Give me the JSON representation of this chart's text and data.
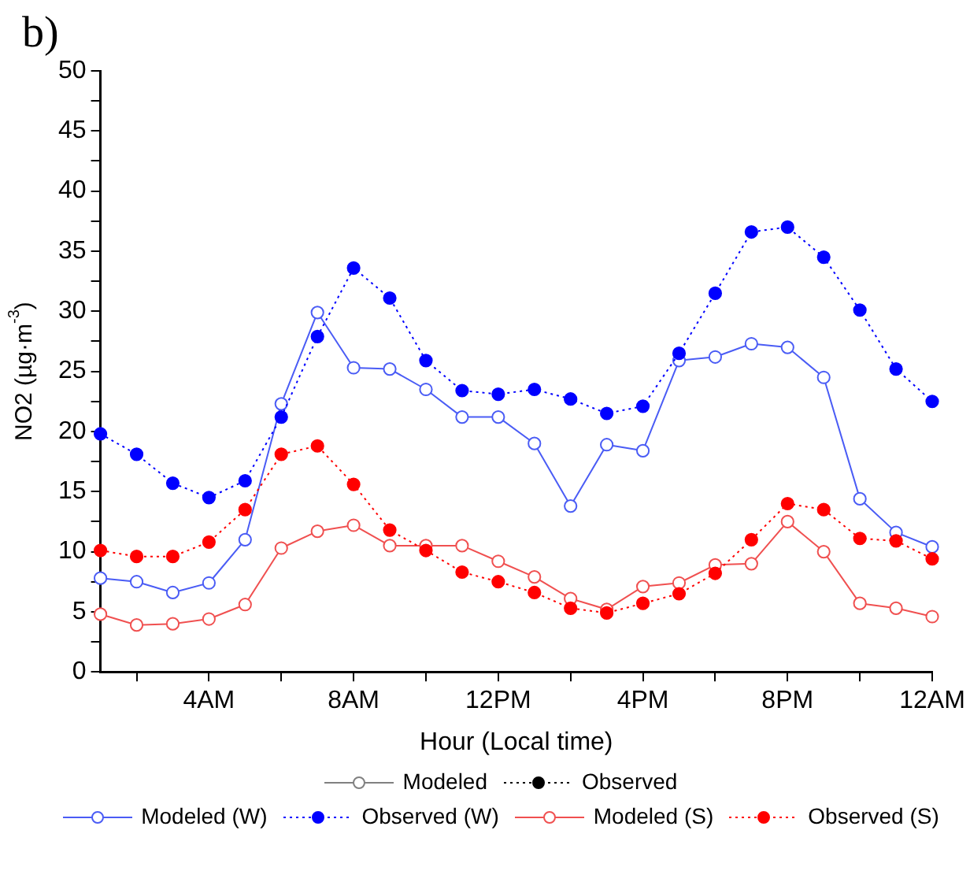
{
  "chart_data": {
    "type": "line",
    "annotations": [
      "b)"
    ],
    "xlabel": "Hour (Local time)",
    "ylabel": "NO2 (µg·m$^{-3}$)",
    "categories": [
      null,
      null,
      null,
      "4AM",
      null,
      null,
      null,
      "8AM",
      null,
      null,
      null,
      "12PM",
      null,
      null,
      null,
      "4PM",
      null,
      null,
      null,
      "8PM",
      null,
      null,
      null,
      "12AM"
    ],
    "ylim": [
      0,
      50
    ],
    "yticks": [
      0,
      {
        "value": 2.5,
        "label": null
      },
      5,
      {
        "value": 7.5,
        "label": null
      },
      10,
      {
        "value": 12.5,
        "label": null
      },
      15,
      {
        "value": 17.5,
        "label": null
      },
      20,
      {
        "value": 22.5,
        "label": null
      },
      25,
      {
        "value": 27.5,
        "label": null
      },
      30,
      {
        "value": 32.5,
        "label": null
      },
      35,
      {
        "value": 37.5,
        "label": null
      },
      40,
      {
        "value": 42.5,
        "label": null
      },
      45,
      {
        "value": 47.5,
        "label": null
      },
      50
    ],
    "grid": false,
    "legend": "bottom",
    "marker": "circle",
    "series": [
      {
        "name": "Modeled",
        "color": "#808080",
        "line_style": "solid",
        "values": [
          null,
          null,
          null,
          null,
          null,
          null,
          null,
          null,
          null,
          null,
          null,
          null,
          null,
          null,
          null,
          null,
          null,
          null,
          null,
          null,
          null,
          null,
          null,
          null
        ]
      },
      {
        "name": "Observed",
        "color": "#000000",
        "line_style": "dotted",
        "values": [
          null,
          null,
          null,
          null,
          null,
          null,
          null,
          null,
          null,
          null,
          null,
          null,
          null,
          null,
          null,
          null,
          null,
          null,
          null,
          null,
          null,
          null,
          null,
          null
        ]
      },
      {
        "name": "Modeled (W)",
        "color": "#4a5cf5",
        "line_style": "solid",
        "values": [
          7.8,
          7.5,
          6.6,
          7.4,
          11.0,
          22.3,
          29.9,
          25.3,
          25.2,
          23.5,
          21.2,
          21.2,
          19.0,
          13.8,
          18.9,
          18.4,
          25.9,
          26.2,
          27.3,
          27.0,
          24.5,
          14.4,
          11.6,
          10.4
        ]
      },
      {
        "name": "Observed (W)",
        "color": "#0000ff",
        "line_style": "dotted",
        "values": [
          19.8,
          18.1,
          15.7,
          14.5,
          15.9,
          21.2,
          27.9,
          33.6,
          31.1,
          25.9,
          23.4,
          23.1,
          23.5,
          22.7,
          21.5,
          22.1,
          26.5,
          31.5,
          36.6,
          37.0,
          34.5,
          30.1,
          25.2,
          22.5
        ]
      },
      {
        "name": "Modeled (S)",
        "color": "#f05050",
        "line_style": "solid",
        "values": [
          4.8,
          3.9,
          4.0,
          4.4,
          5.6,
          10.3,
          11.7,
          12.2,
          10.5,
          10.5,
          10.5,
          9.2,
          7.9,
          6.1,
          5.2,
          7.1,
          7.4,
          8.9,
          9.0,
          12.5,
          10.0,
          5.7,
          5.3,
          4.6
        ]
      },
      {
        "name": "Observed (S)",
        "color": "#ff0000",
        "line_style": "dotted",
        "values": [
          10.1,
          9.6,
          9.6,
          10.8,
          13.5,
          18.1,
          18.8,
          15.6,
          11.8,
          10.1,
          8.3,
          7.5,
          6.6,
          5.3,
          4.9,
          5.7,
          6.5,
          8.2,
          11.0,
          14.0,
          13.5,
          11.1,
          10.9,
          9.4
        ]
      }
    ]
  }
}
